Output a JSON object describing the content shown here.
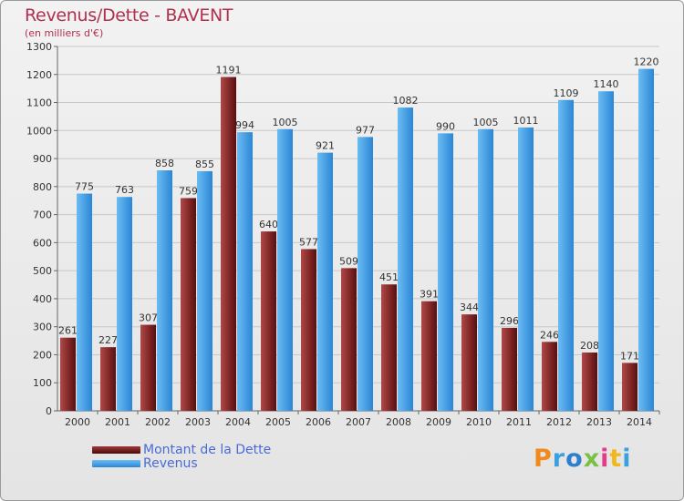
{
  "chart_data": {
    "type": "bar",
    "title": "Revenus/Dette - BAVENT",
    "subtitle": "(en milliers d'€)",
    "xlabel": "",
    "ylabel": "",
    "ylim": [
      0,
      1300
    ],
    "yticks": [
      0,
      100,
      200,
      300,
      400,
      500,
      600,
      700,
      800,
      900,
      1000,
      1100,
      1200,
      1300
    ],
    "grid": true,
    "categories": [
      "2000",
      "2001",
      "2002",
      "2003",
      "2004",
      "2005",
      "2006",
      "2007",
      "2008",
      "2009",
      "2010",
      "2011",
      "2012",
      "2013",
      "2014"
    ],
    "series": [
      {
        "name": "Montant de la Dette",
        "color": "#7a1a1a",
        "values": [
          261,
          227,
          307,
          759,
          1191,
          640,
          577,
          509,
          451,
          391,
          344,
          296,
          246,
          208,
          171
        ]
      },
      {
        "name": "Revenus",
        "color": "#3a9ee6",
        "values": [
          775,
          763,
          858,
          855,
          994,
          1005,
          921,
          977,
          1082,
          990,
          1005,
          1011,
          1109,
          1140,
          1220
        ]
      }
    ],
    "legend_position": "bottom-left"
  },
  "logo": {
    "text": "Proxiti",
    "colors": [
      "#f08a1c",
      "#3aa0e0",
      "#2c7fd0",
      "#7ac143",
      "#e83a8c",
      "#f0b81c",
      "#3aa0e0"
    ]
  }
}
